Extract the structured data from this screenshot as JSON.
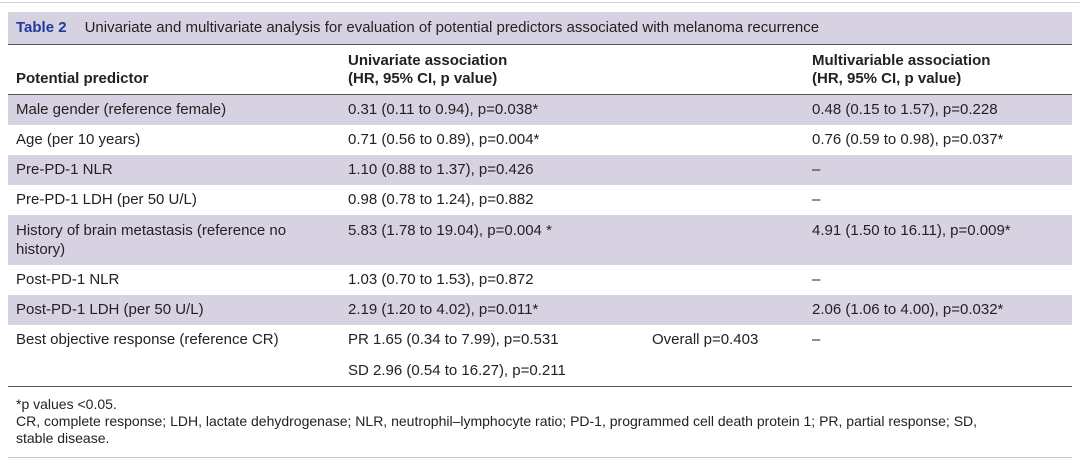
{
  "colors": {
    "caption_background": "#d7d2e2",
    "shaded_row_background": "#d7d2e2",
    "table_label_blue": "#20399a",
    "body_text": "#232122"
  },
  "table": {
    "label": "Table 2",
    "title": "Univariate and multivariate analysis for evaluation of potential predictors associated with melanoma recurrence",
    "columns": {
      "predictor": "Potential predictor",
      "univariate_line1": "Univariate association",
      "univariate_line2": "(HR, 95% CI, p value)",
      "multivariable_line1": "Multivariable association",
      "multivariable_line2": "(HR, 95% CI, p value)"
    },
    "rows": [
      {
        "predictor": "Male gender (reference female)",
        "univariate": "0.31 (0.11 to 0.94), p=0.038*",
        "overall": "",
        "multivariable": "0.48 (0.15 to 1.57), p=0.228"
      },
      {
        "predictor": "Age (per 10 years)",
        "univariate": "0.71 (0.56 to 0.89), p=0.004*",
        "overall": "",
        "multivariable": "0.76 (0.59 to 0.98), p=0.037*"
      },
      {
        "predictor": "Pre-PD-1 NLR",
        "univariate": "1.10 (0.88 to 1.37), p=0.426",
        "overall": "",
        "multivariable": "–"
      },
      {
        "predictor": "Pre-PD-1 LDH (per 50 U/L)",
        "univariate": "0.98 (0.78 to 1.24), p=0.882",
        "overall": "",
        "multivariable": "–"
      },
      {
        "predictor": "History of brain metastasis (reference no history)",
        "univariate": "5.83 (1.78 to 19.04), p=0.004 *",
        "overall": "",
        "multivariable": "4.91 (1.50 to 16.11), p=0.009*"
      },
      {
        "predictor": "Post-PD-1 NLR",
        "univariate": "1.03 (0.70 to 1.53), p=0.872",
        "overall": "",
        "multivariable": "–"
      },
      {
        "predictor": "Post-PD-1 LDH (per 50 U/L)",
        "univariate": "2.19 (1.20 to 4.02), p=0.011*",
        "overall": "",
        "multivariable": "2.06 (1.06 to 4.00), p=0.032*"
      },
      {
        "predictor": "Best objective response (reference CR)",
        "univariate": "PR 1.65 (0.34 to 7.99), p=0.531",
        "univariate_line2": "SD 2.96 (0.54 to 16.27), p=0.211",
        "overall": "Overall p=0.403",
        "multivariable": "–"
      }
    ],
    "footnotes": {
      "significance": "*p values <0.05.",
      "abbreviations": "CR, complete response; LDH, lactate dehydrogenase; NLR, neutrophil–lymphocyte ratio; PD-1, programmed cell death protein 1; PR, partial response; SD, stable disease."
    }
  }
}
